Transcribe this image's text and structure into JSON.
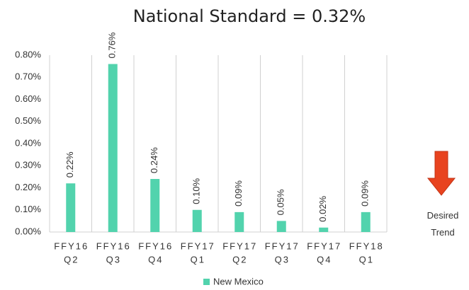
{
  "chart_data": {
    "type": "bar",
    "title": "National Standard = 0.32%",
    "categories": [
      [
        "FFY16",
        "Q2"
      ],
      [
        "FFY16",
        "Q3"
      ],
      [
        "FFY16",
        "Q4"
      ],
      [
        "FFY17",
        "Q1"
      ],
      [
        "FFY17",
        "Q2"
      ],
      [
        "FFY17",
        "Q3"
      ],
      [
        "FFY17",
        "Q4"
      ],
      [
        "FFY18",
        "Q1"
      ]
    ],
    "series": [
      {
        "name": "New Mexico",
        "color": "#52d3ad",
        "values": [
          0.22,
          0.76,
          0.24,
          0.1,
          0.09,
          0.05,
          0.02,
          0.09
        ],
        "value_labels": [
          "0.22%",
          "0.76%",
          "0.24%",
          "0.10%",
          "0.09%",
          "0.05%",
          "0.02%",
          "0.09%"
        ]
      }
    ],
    "ylim": [
      0,
      0.8
    ],
    "yticks": [
      {
        "value": 0,
        "label": "0.00%"
      },
      {
        "value": 0.1,
        "label": "0.10%"
      },
      {
        "value": 0.2,
        "label": "0.20%"
      },
      {
        "value": 0.3,
        "label": "0.30%"
      },
      {
        "value": 0.4,
        "label": "0.40%"
      },
      {
        "value": 0.5,
        "label": "0.50%"
      },
      {
        "value": 0.6,
        "label": "0.60%"
      },
      {
        "value": 0.7,
        "label": "0.70%"
      },
      {
        "value": 0.8,
        "label": "0.80%"
      }
    ],
    "annotation": "Desired Trend",
    "legend": "bottom"
  }
}
